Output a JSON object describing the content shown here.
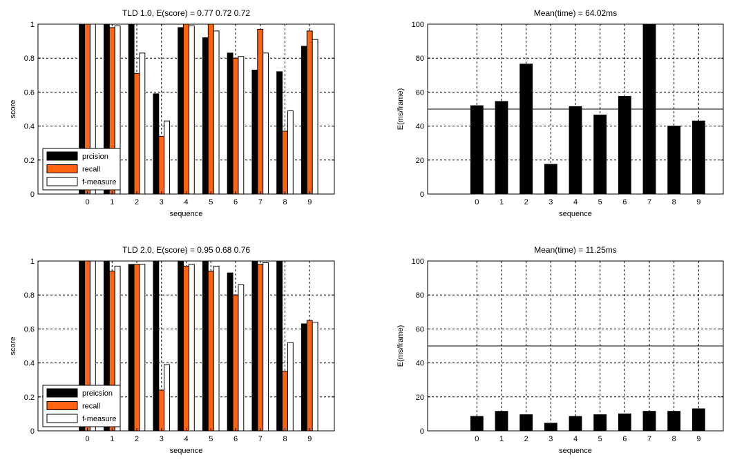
{
  "colors": {
    "precision": "#000000",
    "recall": "#ff6410",
    "fmeasure": "#ffffff",
    "time": "#000000",
    "axis": "#000000",
    "grid": "#000000"
  },
  "chart_data": [
    {
      "type": "bar",
      "title": "TLD 1.0, E(score) = 0.77 0.72 0.72",
      "xlabel": "sequence",
      "ylabel": "score",
      "ylim": [
        0,
        1
      ],
      "xlim": [
        -2,
        10
      ],
      "yticks": [
        "0",
        "0.2",
        "0.4",
        "0.6",
        "0.8",
        "1"
      ],
      "categories": [
        "0",
        "1",
        "2",
        "3",
        "4",
        "5",
        "6",
        "7",
        "8",
        "9"
      ],
      "grid": true,
      "legend_position": "bottom-left",
      "series": [
        {
          "name": "prcision",
          "values": [
            1.0,
            1.0,
            1.0,
            0.59,
            0.98,
            0.92,
            0.83,
            0.73,
            0.72,
            0.87
          ]
        },
        {
          "name": "recall",
          "values": [
            1.0,
            0.98,
            0.71,
            0.34,
            1.0,
            1.0,
            0.8,
            0.97,
            0.37,
            0.96
          ]
        },
        {
          "name": "f-measure",
          "values": [
            1.0,
            0.99,
            0.83,
            0.43,
            0.99,
            0.96,
            0.81,
            0.83,
            0.49,
            0.91
          ]
        }
      ]
    },
    {
      "type": "bar",
      "title": "Mean(time) = 64.02ms",
      "xlabel": "sequence",
      "ylabel": "E(ms/frame)",
      "ylim": [
        0,
        100
      ],
      "xlim": [
        -2,
        10
      ],
      "yticks": [
        "0",
        "20",
        "40",
        "60",
        "80",
        "100"
      ],
      "categories": [
        "0",
        "1",
        "2",
        "3",
        "4",
        "5",
        "6",
        "7",
        "8",
        "9"
      ],
      "grid": true,
      "reference_line": 50,
      "series": [
        {
          "values": [
            52,
            54.5,
            76.5,
            17.5,
            51.5,
            46.5,
            57.5,
            100,
            40,
            43
          ]
        }
      ]
    },
    {
      "type": "bar",
      "title": "TLD 2.0, E(score) = 0.95 0.68 0.76",
      "xlabel": "sequence",
      "ylabel": "score",
      "ylim": [
        0,
        1
      ],
      "xlim": [
        -2,
        10
      ],
      "yticks": [
        "0",
        "0.2",
        "0.4",
        "0.6",
        "0.8",
        "1"
      ],
      "categories": [
        "0",
        "1",
        "2",
        "3",
        "4",
        "5",
        "6",
        "7",
        "8",
        "9"
      ],
      "grid": true,
      "legend_position": "bottom-left",
      "series": [
        {
          "name": "preicsion",
          "values": [
            1.0,
            1.0,
            0.98,
            1.0,
            1.0,
            1.0,
            0.93,
            1.0,
            1.0,
            0.63
          ]
        },
        {
          "name": "recall",
          "values": [
            1.0,
            0.94,
            0.98,
            0.24,
            0.97,
            0.94,
            0.8,
            0.98,
            0.35,
            0.65
          ]
        },
        {
          "name": "f-measure",
          "values": [
            1.0,
            0.97,
            0.98,
            0.39,
            0.98,
            0.97,
            0.86,
            0.99,
            0.52,
            0.64
          ]
        }
      ]
    },
    {
      "type": "bar",
      "title": "Mean(time) = 11.25ms",
      "xlabel": "sequence",
      "ylabel": "E(ms/frame)",
      "ylim": [
        0,
        100
      ],
      "xlim": [
        -2,
        10
      ],
      "yticks": [
        "0",
        "20",
        "40",
        "60",
        "80",
        "100"
      ],
      "categories": [
        "0",
        "1",
        "2",
        "3",
        "4",
        "5",
        "6",
        "7",
        "8",
        "9"
      ],
      "grid": true,
      "reference_line": 50,
      "series": [
        {
          "values": [
            8.5,
            11.5,
            9.5,
            4.5,
            8.5,
            9.5,
            10,
            11.5,
            11.5,
            13
          ]
        }
      ]
    }
  ]
}
